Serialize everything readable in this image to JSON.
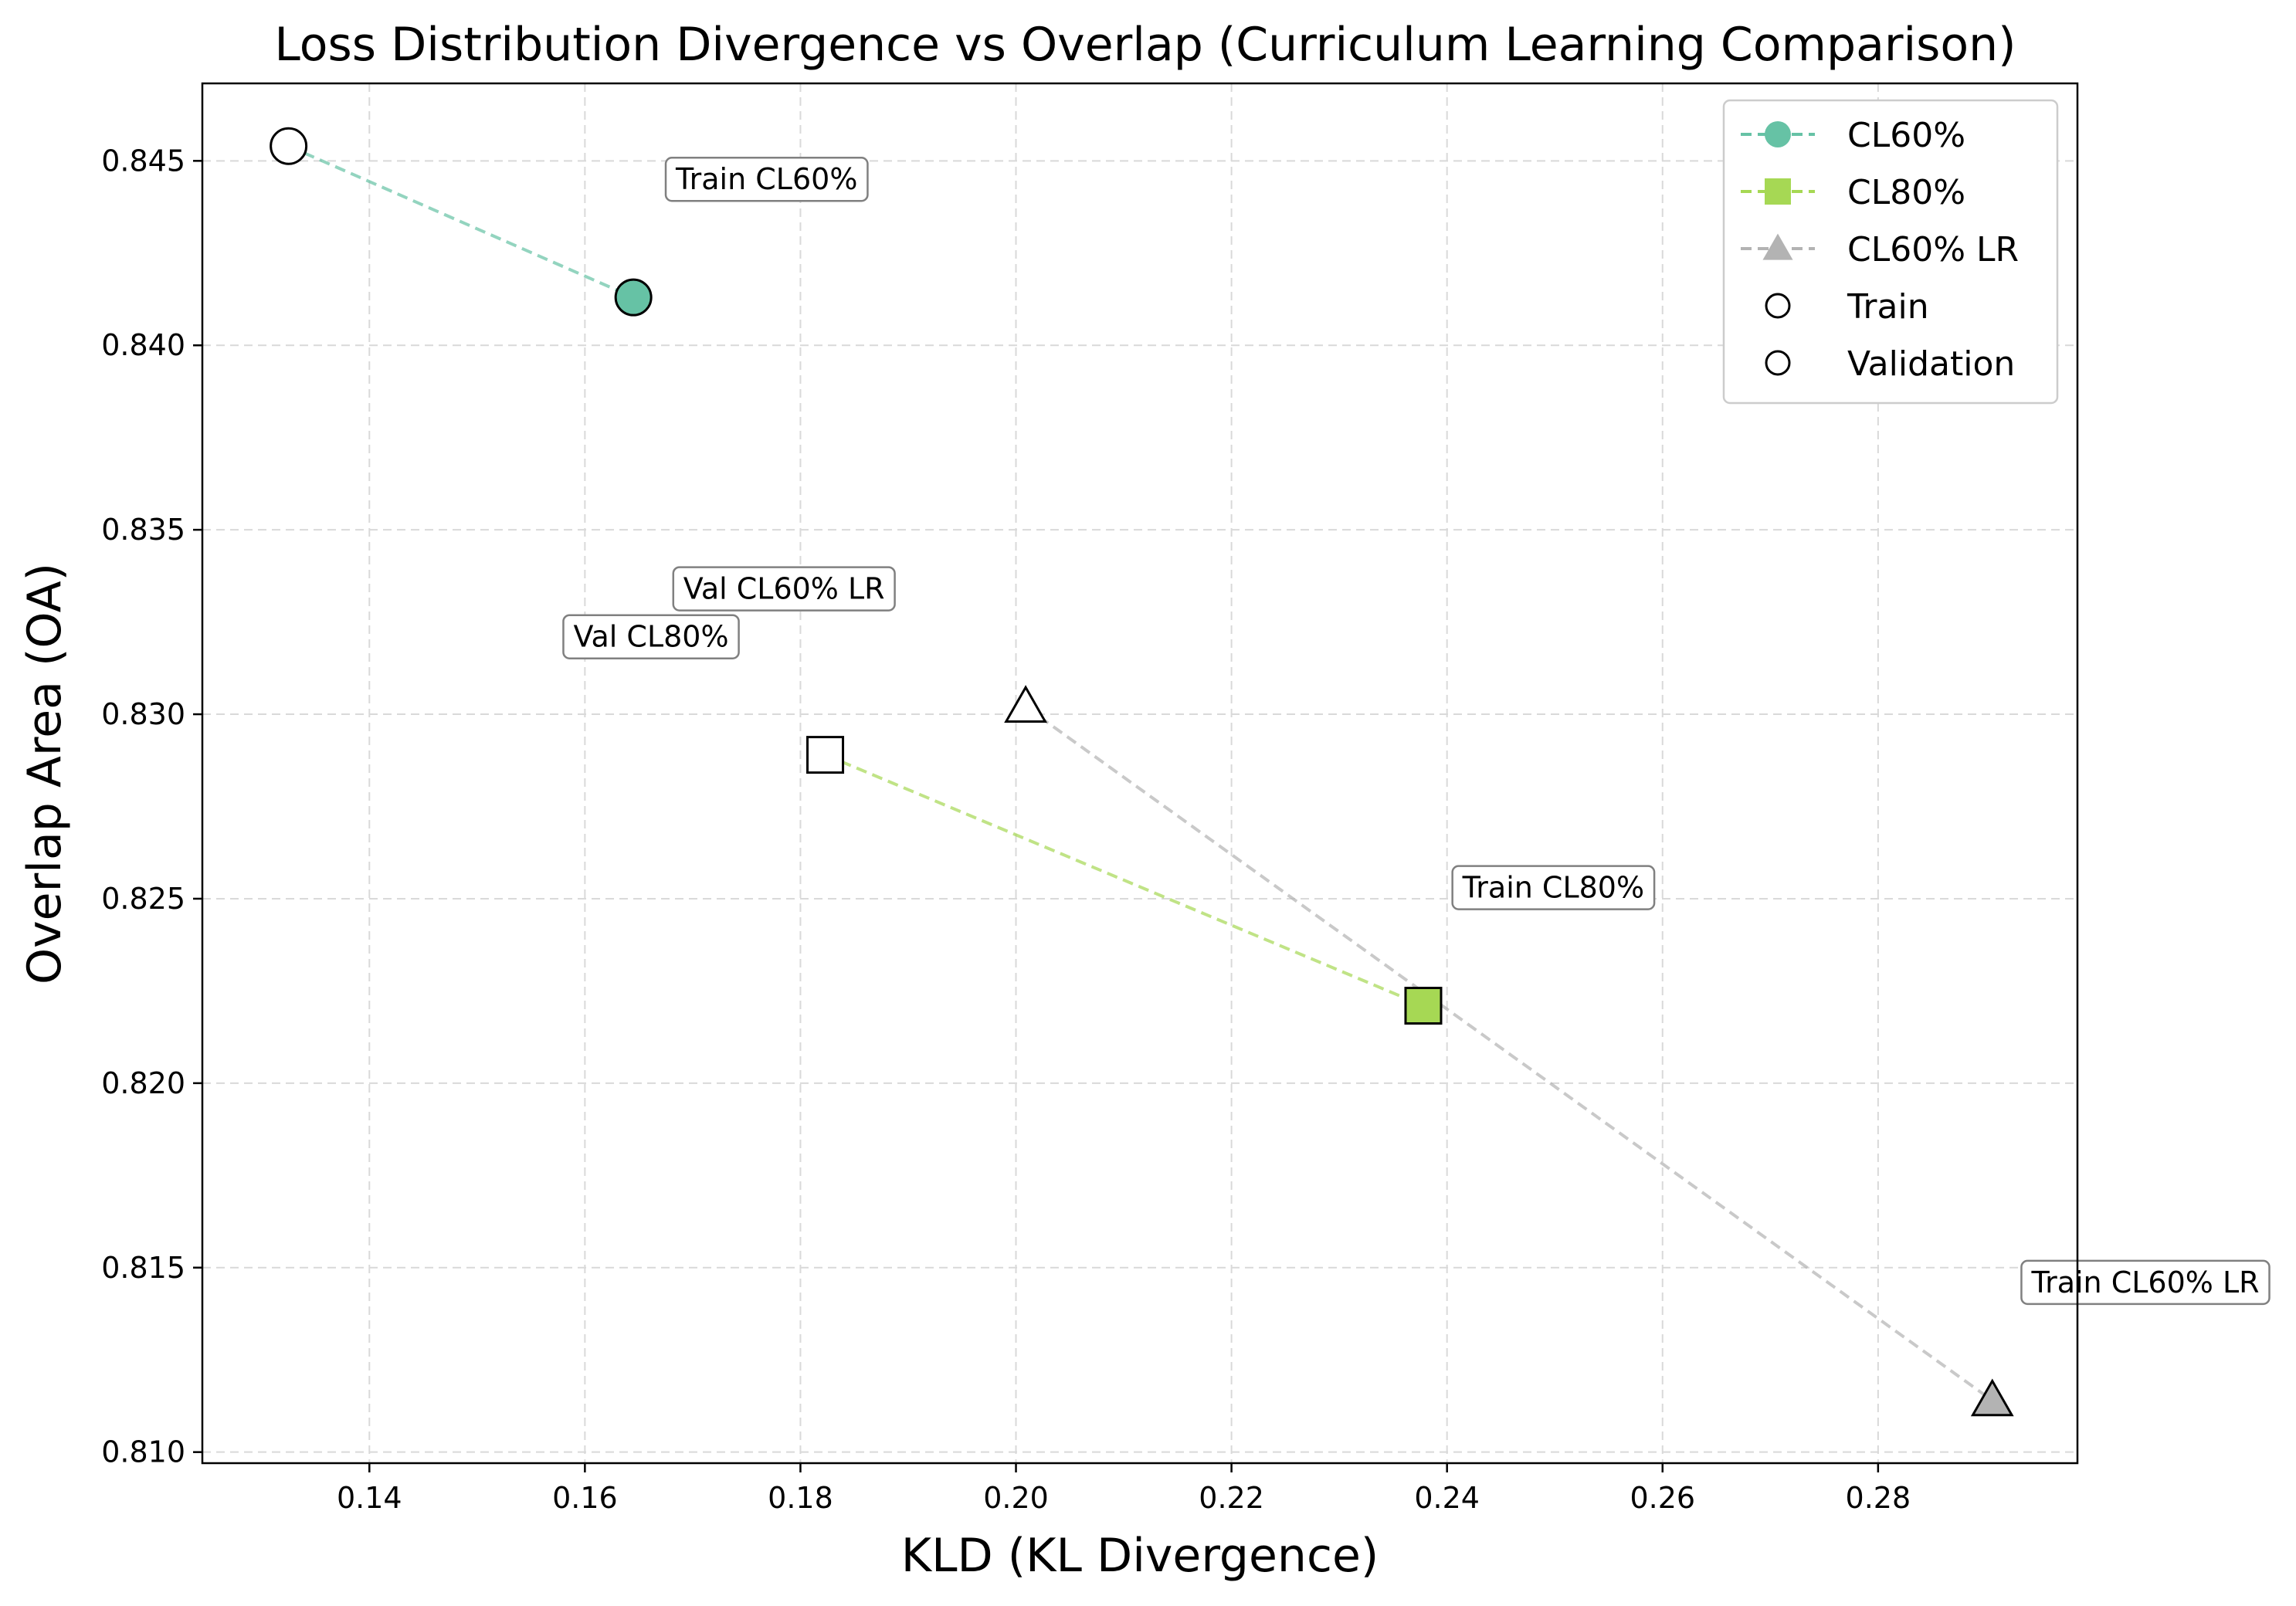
{
  "chart_data": {
    "type": "scatter",
    "title": "Loss Distribution Divergence vs Overlap (Curriculum Learning Comparison)",
    "xlabel": "KLD (KL Divergence)",
    "ylabel": "Overlap Area (OA)",
    "xlim": [
      0.1245,
      0.2985
    ],
    "ylim": [
      0.8097,
      0.8471
    ],
    "x_ticks": [
      0.14,
      0.16,
      0.18,
      0.2,
      0.22,
      0.24,
      0.26,
      0.28
    ],
    "x_tick_labels": [
      "0.14",
      "0.16",
      "0.18",
      "0.20",
      "0.22",
      "0.24",
      "0.26",
      "0.28"
    ],
    "y_ticks": [
      0.81,
      0.815,
      0.82,
      0.825,
      0.83,
      0.835,
      0.84,
      0.845
    ],
    "y_tick_labels": [
      "0.810",
      "0.815",
      "0.820",
      "0.825",
      "0.830",
      "0.835",
      "0.840",
      "0.845"
    ],
    "grid": true,
    "legend_position": "top-right",
    "series": [
      {
        "name": "CL60%",
        "color": "#66c2a5",
        "marker": "circle",
        "train": {
          "x": 0.1645,
          "y": 0.8413
        },
        "validation": {
          "x": 0.1325,
          "y": 0.8454
        }
      },
      {
        "name": "CL80%",
        "color": "#a6d854",
        "marker": "square",
        "train": {
          "x": 0.2378,
          "y": 0.8221
        },
        "validation": {
          "x": 0.1823,
          "y": 0.8289
        }
      },
      {
        "name": "CL60% LR",
        "color": "#b3b3b3",
        "marker": "triangle",
        "train": {
          "x": 0.2906,
          "y": 0.8114
        },
        "validation": {
          "x": 0.2009,
          "y": 0.8302
        }
      }
    ],
    "legend_extra": [
      {
        "label": "Train",
        "marker": "circle-open"
      },
      {
        "label": "Validation",
        "marker": "circle-open"
      }
    ],
    "annotations": [
      {
        "text": "Train CL60%",
        "x": 0.1675,
        "y": 0.8445
      },
      {
        "text": "Val CL60% LR",
        "x": 0.1682,
        "y": 0.8334
      },
      {
        "text": "Val CL80%",
        "x": 0.158,
        "y": 0.8321
      },
      {
        "text": "Train CL80%",
        "x": 0.2405,
        "y": 0.8253
      },
      {
        "text": "Train CL60% LR",
        "x": 0.2933,
        "y": 0.8146
      }
    ]
  }
}
